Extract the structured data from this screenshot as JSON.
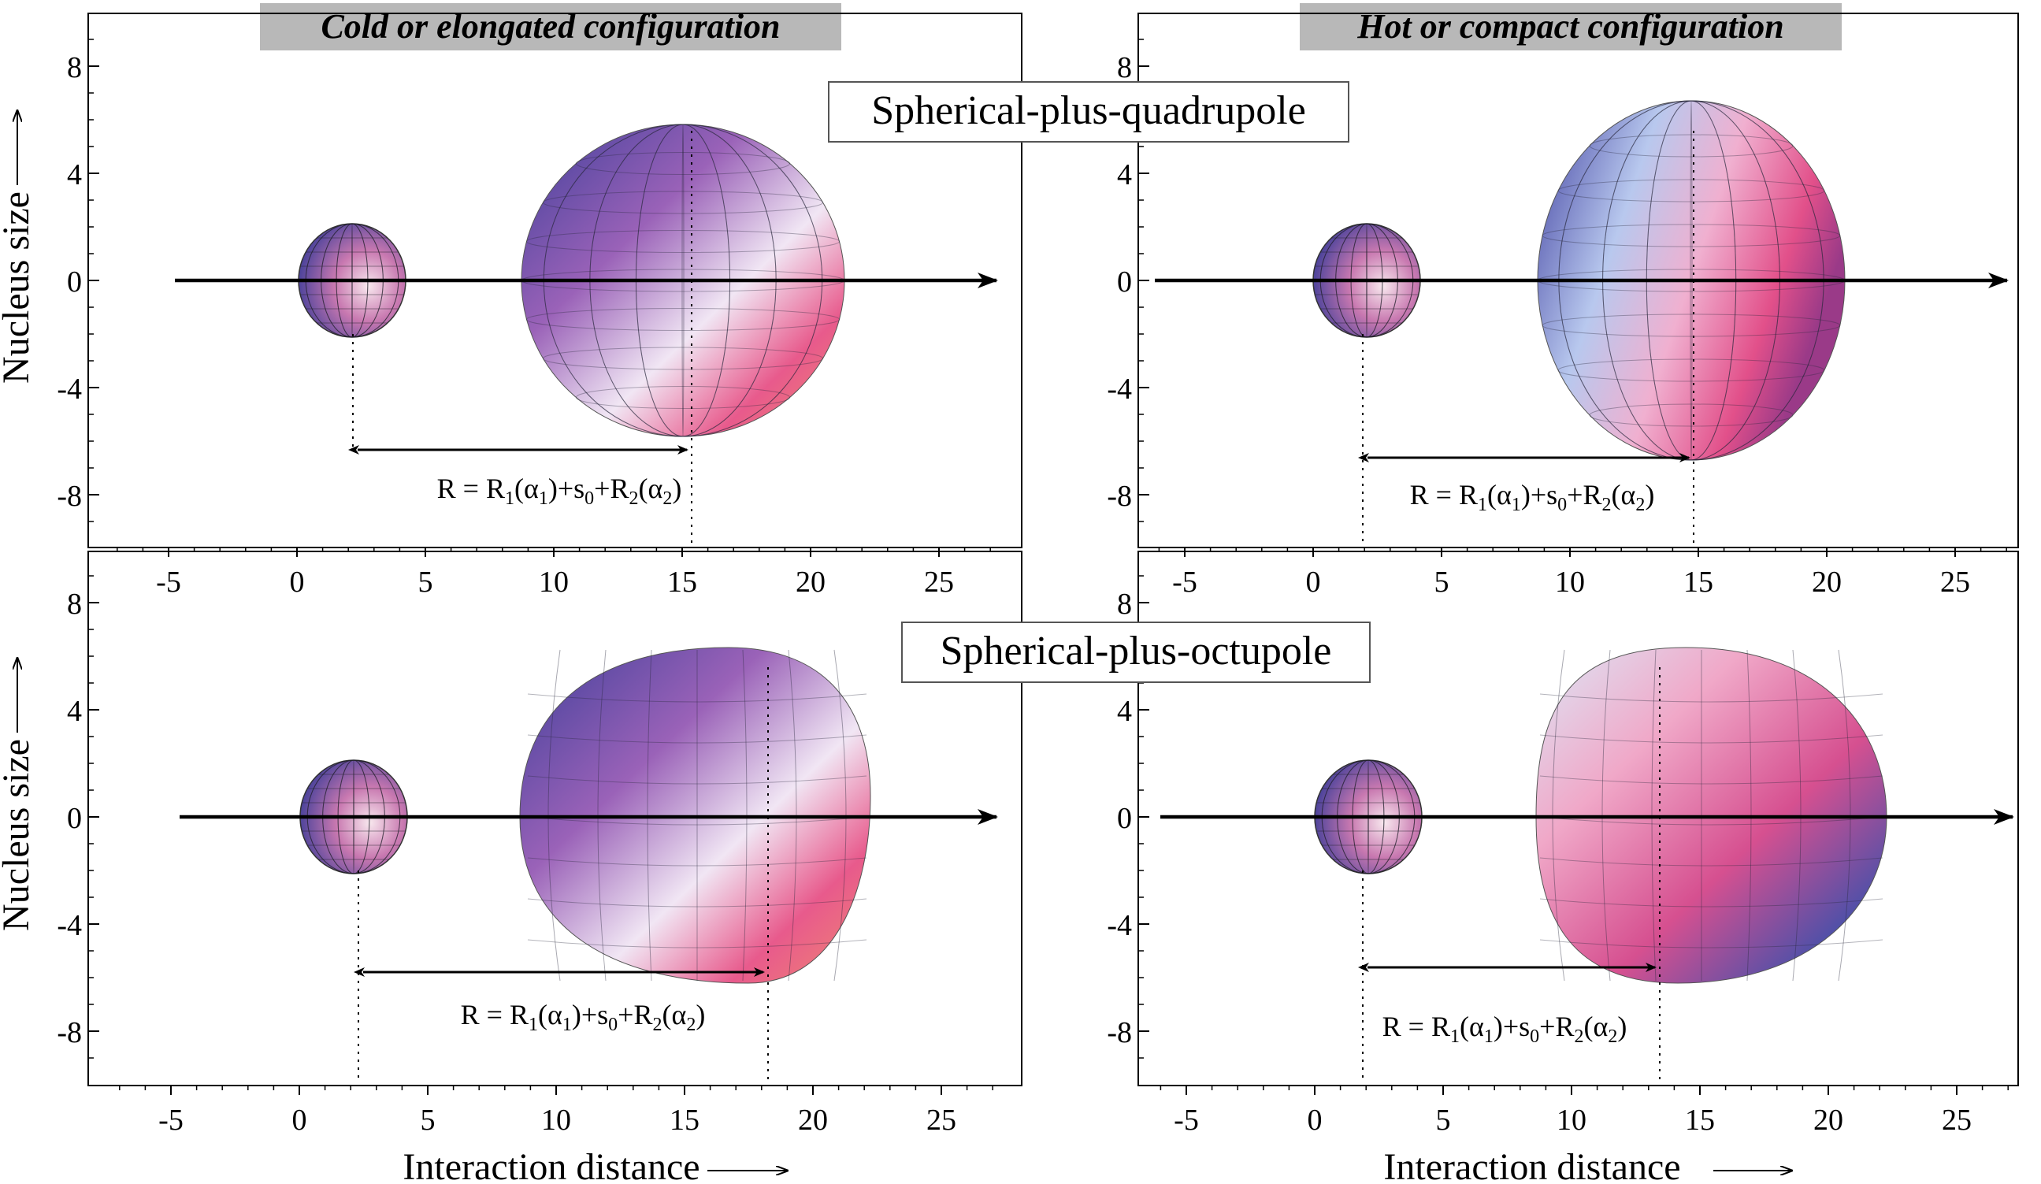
{
  "headers": {
    "left": "Cold or elongated configuration",
    "right": "Hot or compact configuration"
  },
  "row_titles": {
    "top": "Spherical-plus-quadrupole",
    "bottom": "Spherical-plus-octupole"
  },
  "axes": {
    "y_label": "Nucleus size",
    "x_label": "Interaction distance",
    "x_ticks": [
      "-5",
      "0",
      "5",
      "10",
      "15",
      "20",
      "25"
    ],
    "y_ticks": [
      "8",
      "4",
      "0",
      "-4",
      "-8"
    ],
    "x_range": [
      -7.5,
      28
    ],
    "y_range": [
      -10,
      10
    ]
  },
  "formula": {
    "prefix": "R = R",
    "sub1": "1",
    "alpha_open": "(α",
    "close_plus": ")+s",
    "sub0": "0",
    "plus_r": "+R",
    "sub2": "2",
    "close": ")"
  },
  "colors": {
    "axis": "#000000",
    "title_bg": "#b8b8b8",
    "nucleus_blue": "#4a4aa8",
    "nucleus_pink": "#e8508a",
    "nucleus_light": "#f3eaf5"
  },
  "panels": [
    {
      "id": "quad-cold",
      "config": "cold",
      "deformation": "quadrupole",
      "small_center_x": 2.2,
      "small_radius": 2.1,
      "large_center_x": 15.0,
      "separation_x": [
        2.3,
        15.3
      ]
    },
    {
      "id": "quad-hot",
      "config": "hot",
      "deformation": "quadrupole",
      "small_center_x": 2.1,
      "small_radius": 2.1,
      "large_center_x": 14.7,
      "separation_x": [
        1.9,
        14.6
      ]
    },
    {
      "id": "oct-cold",
      "config": "cold",
      "deformation": "octupole",
      "small_center_x": 2.2,
      "small_radius": 2.1,
      "large_center_x": 15.5,
      "separation_x": [
        2.4,
        18.1
      ]
    },
    {
      "id": "oct-hot",
      "config": "hot",
      "deformation": "octupole",
      "small_center_x": 2.1,
      "small_radius": 2.1,
      "large_center_x": 15.0,
      "separation_x": [
        1.9,
        13.3
      ]
    }
  ]
}
